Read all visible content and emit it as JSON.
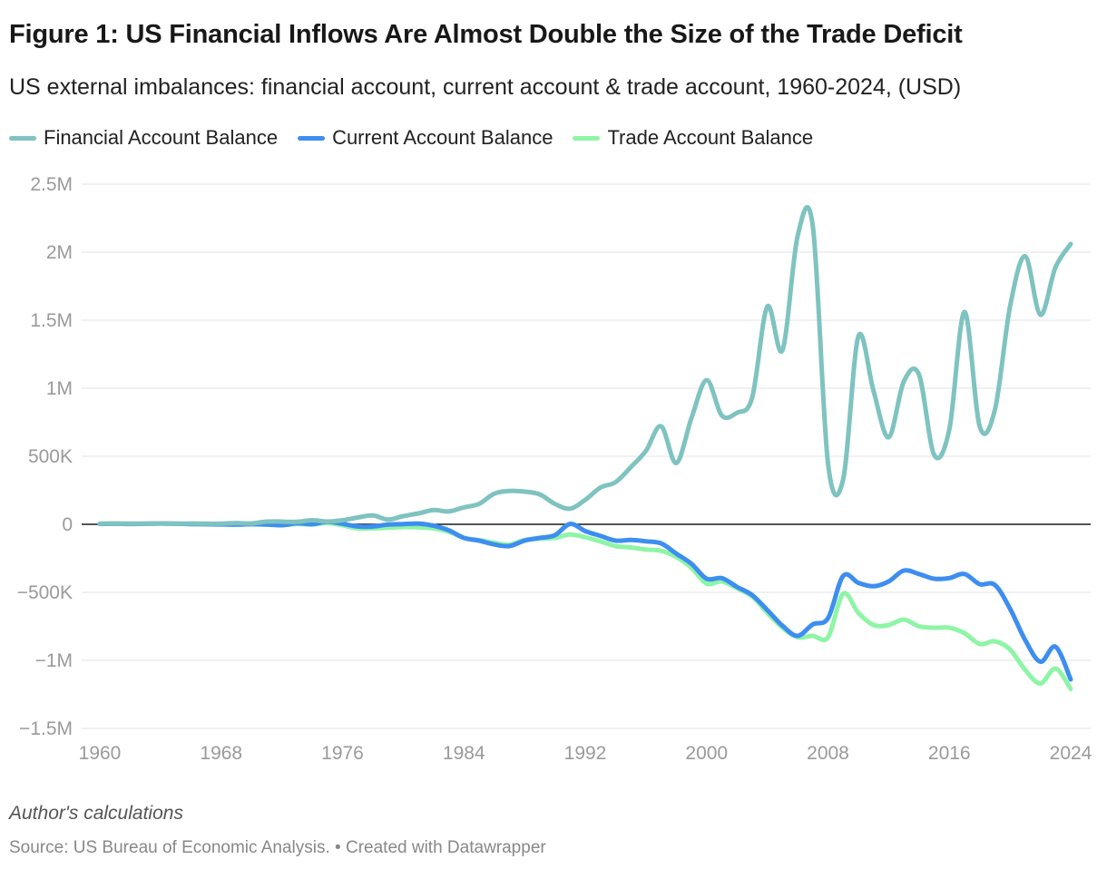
{
  "title": "Figure 1: US Financial Inflows Are Almost Double the Size of the Trade Deficit",
  "subtitle": "US external imbalances: financial account, current account & trade account, 1960-2024, (USD)",
  "note": "Author's calculations",
  "source": "Source: US Bureau of Economic Analysis. • Created with Datawrapper",
  "chart_data": {
    "type": "line",
    "title": "Figure 1: US Financial Inflows Are Almost Double the Size of the Trade Deficit",
    "xlabel": "",
    "ylabel": "",
    "xlim": [
      1960,
      2024
    ],
    "ylim": [
      -1500000,
      2500000
    ],
    "x_ticks": [
      1960,
      1968,
      1976,
      1984,
      1992,
      2000,
      2008,
      2016,
      2024
    ],
    "y_ticks": [
      2500000,
      2000000,
      1500000,
      1000000,
      500000,
      0,
      -500000,
      -1000000,
      -1500000
    ],
    "y_tick_labels": [
      "2.5M",
      "2M",
      "1.5M",
      "1M",
      "500K",
      "0",
      "−500K",
      "−1M",
      "−1.5M"
    ],
    "x": [
      1960,
      1961,
      1962,
      1963,
      1964,
      1965,
      1966,
      1967,
      1968,
      1969,
      1970,
      1971,
      1972,
      1973,
      1974,
      1975,
      1976,
      1977,
      1978,
      1979,
      1980,
      1981,
      1982,
      1983,
      1984,
      1985,
      1986,
      1987,
      1988,
      1989,
      1990,
      1991,
      1992,
      1993,
      1994,
      1995,
      1996,
      1997,
      1998,
      1999,
      2000,
      2001,
      2002,
      2003,
      2004,
      2005,
      2006,
      2007,
      2008,
      2009,
      2010,
      2011,
      2012,
      2013,
      2014,
      2015,
      2016,
      2017,
      2018,
      2019,
      2020,
      2021,
      2022,
      2023,
      2024
    ],
    "series": [
      {
        "name": "Financial Account Balance",
        "color": "#7fc3c0",
        "values": [
          5000,
          6000,
          5000,
          5000,
          7000,
          5000,
          6000,
          5000,
          5000,
          9000,
          6000,
          20000,
          20000,
          18000,
          30000,
          20000,
          30000,
          50000,
          65000,
          35000,
          60000,
          80000,
          105000,
          95000,
          125000,
          150000,
          225000,
          245000,
          240000,
          220000,
          150000,
          115000,
          180000,
          270000,
          310000,
          420000,
          540000,
          720000,
          450000,
          780000,
          1060000,
          800000,
          820000,
          930000,
          1600000,
          1280000,
          2120000,
          2190000,
          450000,
          330000,
          1380000,
          980000,
          640000,
          1050000,
          1100000,
          510000,
          700000,
          1560000,
          720000,
          840000,
          1600000,
          1970000,
          1540000,
          1890000,
          2060000
        ]
      },
      {
        "name": "Current Account Balance",
        "color": "#3d8ef0",
        "values": [
          3000,
          4000,
          3000,
          4000,
          6000,
          4000,
          2000,
          1000,
          -1000,
          -2000,
          1000,
          -2000,
          -7000,
          8000,
          2000,
          18000,
          4000,
          -16000,
          -16000,
          -2000,
          2000,
          5000,
          -11000,
          -44000,
          -100000,
          -120000,
          -148000,
          -160000,
          -120000,
          -100000,
          -80000,
          3000,
          -50000,
          -85000,
          -120000,
          -115000,
          -125000,
          -140000,
          -215000,
          -290000,
          -400000,
          -395000,
          -460000,
          -520000,
          -630000,
          -745000,
          -820000,
          -735000,
          -690000,
          -380000,
          -430000,
          -455000,
          -420000,
          -340000,
          -365000,
          -400000,
          -395000,
          -365000,
          -440000,
          -445000,
          -620000,
          -850000,
          -1010000,
          -900000,
          -1140000
        ]
      },
      {
        "name": "Trade Account Balance",
        "color": "#8ef5a6",
        "values": [
          4000,
          5000,
          4000,
          4000,
          6000,
          4000,
          3000,
          3000,
          1000,
          1000,
          2000,
          -1000,
          -5000,
          2000,
          -2000,
          10000,
          -8000,
          -30000,
          -30000,
          -25000,
          -20000,
          -22000,
          -30000,
          -55000,
          -100000,
          -115000,
          -135000,
          -150000,
          -115000,
          -105000,
          -100000,
          -75000,
          -95000,
          -125000,
          -160000,
          -170000,
          -185000,
          -195000,
          -240000,
          -320000,
          -435000,
          -420000,
          -470000,
          -530000,
          -650000,
          -760000,
          -830000,
          -820000,
          -830000,
          -510000,
          -650000,
          -740000,
          -740000,
          -700000,
          -750000,
          -760000,
          -760000,
          -800000,
          -880000,
          -860000,
          -920000,
          -1070000,
          -1170000,
          -1060000,
          -1210000
        ]
      }
    ]
  }
}
